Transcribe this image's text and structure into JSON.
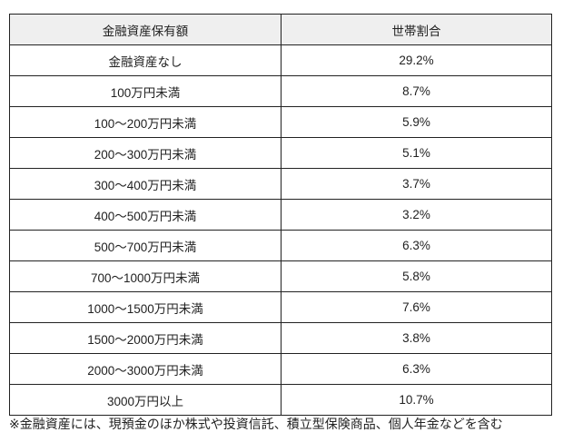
{
  "table": {
    "headers": [
      "金融資産保有額",
      "世帯割合"
    ],
    "rows": [
      [
        "金融資産なし",
        "29.2%"
      ],
      [
        "100万円未満",
        "8.7%"
      ],
      [
        "100〜200万円未満",
        "5.9%"
      ],
      [
        "200〜300万円未満",
        "5.1%"
      ],
      [
        "300〜400万円未満",
        "3.7%"
      ],
      [
        "400〜500万円未満",
        "3.2%"
      ],
      [
        "500〜700万円未満",
        "6.3%"
      ],
      [
        "700〜1000万円未満",
        "5.8%"
      ],
      [
        "1000〜1500万円未満",
        "7.6%"
      ],
      [
        "1500〜2000万円未満",
        "3.8%"
      ],
      [
        "2000〜3000万円未満",
        "6.3%"
      ],
      [
        "3000万円以上",
        "10.7%"
      ]
    ]
  },
  "footnote": "※金融資産には、現預金のほか株式や投資信託、積立型保険商品、個人年金などを含む",
  "colors": {
    "header_bg": "#efefef",
    "border": "#222222"
  }
}
